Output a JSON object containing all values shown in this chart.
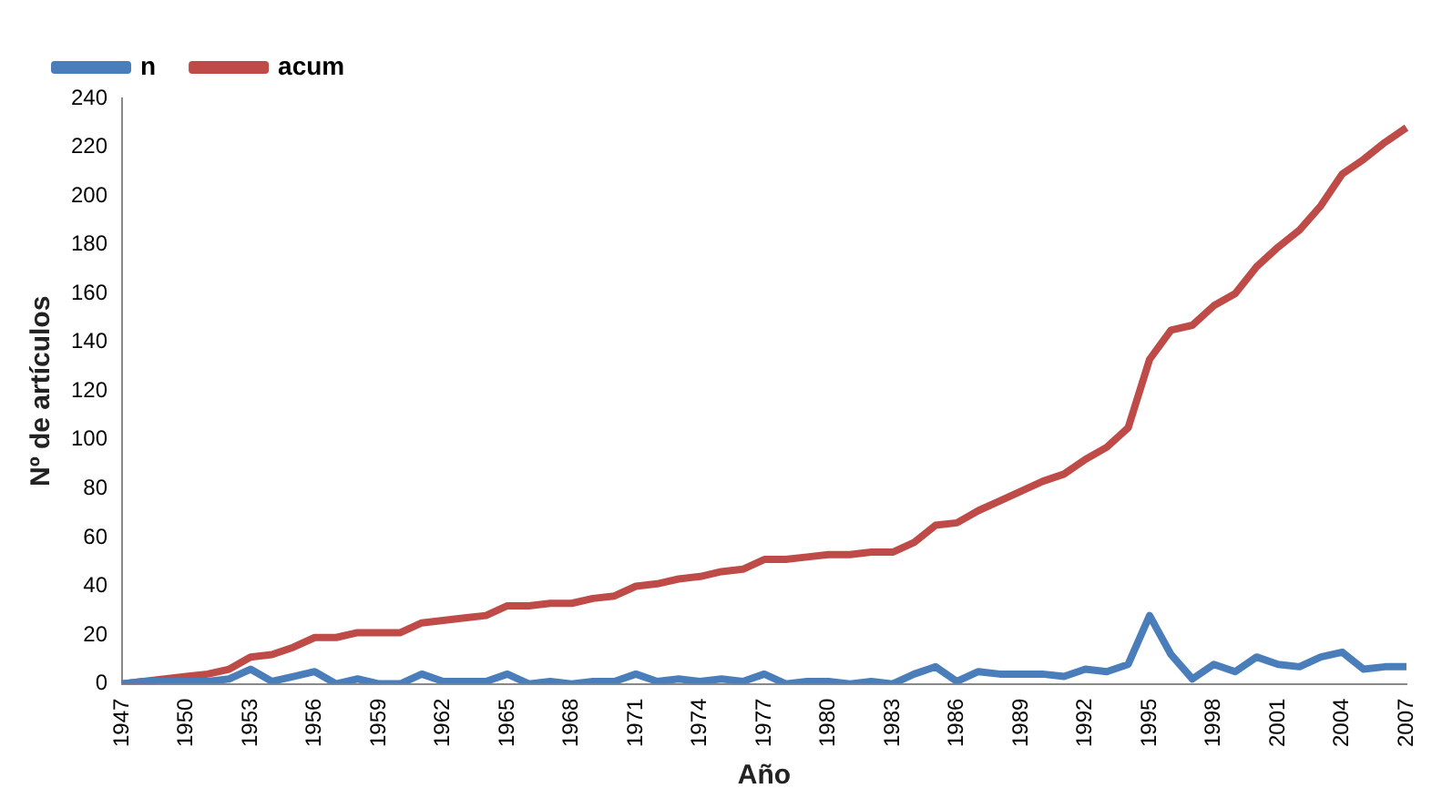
{
  "chart_data": {
    "type": "line",
    "xlabel": "Año",
    "ylabel": "Nº de artículos",
    "categories": [
      "1947",
      null,
      null,
      "1950",
      null,
      null,
      "1953",
      null,
      null,
      "1956",
      null,
      null,
      "1959",
      null,
      null,
      "1962",
      null,
      null,
      "1965",
      null,
      null,
      "1968",
      null,
      null,
      "1971",
      null,
      null,
      "1974",
      null,
      null,
      "1977",
      null,
      null,
      "1980",
      null,
      null,
      "1983",
      null,
      null,
      "1986",
      null,
      null,
      "1989",
      null,
      null,
      "1992",
      null,
      null,
      "1995",
      null,
      null,
      "1998",
      null,
      null,
      "2001",
      null,
      null,
      "2004",
      null,
      null,
      "2007"
    ],
    "series": [
      {
        "name": "n",
        "color": "#4a7ebb",
        "values": [
          0,
          1,
          1,
          1,
          1,
          2,
          6,
          1,
          3,
          5,
          0,
          2,
          0,
          0,
          4,
          1,
          1,
          1,
          4,
          0,
          1,
          0,
          1,
          1,
          4,
          1,
          2,
          1,
          2,
          1,
          4,
          0,
          1,
          1,
          0,
          1,
          0,
          4,
          7,
          1,
          5,
          4,
          4,
          4,
          3,
          6,
          5,
          8,
          28,
          12,
          2,
          8,
          5,
          11,
          8,
          7,
          11,
          13,
          6,
          7,
          7
        ]
      },
      {
        "name": "acum",
        "color": "#be4b48",
        "values": [
          0,
          1,
          2,
          3,
          4,
          6,
          11,
          12,
          15,
          19,
          19,
          21,
          21,
          21,
          25,
          26,
          27,
          28,
          32,
          32,
          33,
          33,
          35,
          36,
          40,
          41,
          43,
          44,
          46,
          47,
          51,
          51,
          52,
          53,
          53,
          54,
          54,
          58,
          65,
          66,
          71,
          75,
          79,
          83,
          86,
          92,
          97,
          105,
          133,
          145,
          147,
          155,
          160,
          171,
          179,
          186,
          196,
          209,
          215,
          222,
          228
        ]
      }
    ],
    "ylim": [
      0,
      240
    ],
    "yticks": [
      0,
      20,
      40,
      60,
      80,
      100,
      120,
      140,
      160,
      180,
      200,
      220,
      240
    ],
    "grid": false,
    "legend": "top left",
    "marker": "none",
    "line_style": "solid"
  }
}
